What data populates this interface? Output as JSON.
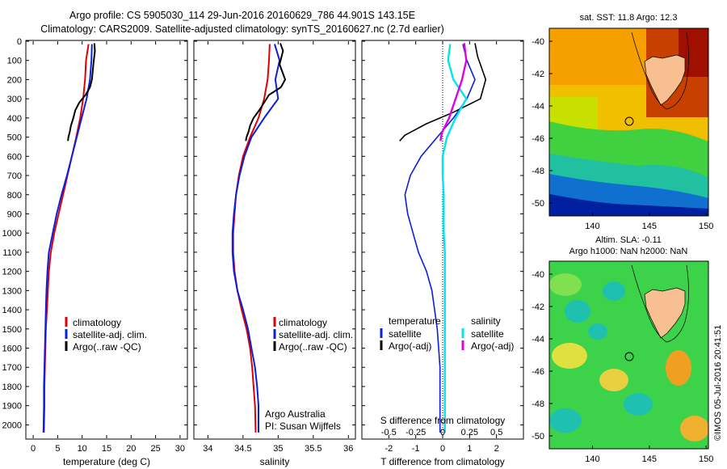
{
  "header": {
    "line1": "Argo profile: CS 5905030_114 29-Jun-2016 20160629_786 44.901S 143.15E",
    "line2": "Climatology: CARS2009. Satellite-adjusted climatology: synTS_20160627.nc (2.7d earlier)"
  },
  "colors": {
    "climatology": "#e00000",
    "satellite_adj": "#0a1fe0",
    "argo": "#000000",
    "sal_satellite": "#00e5ee",
    "sal_argo": "#e000e0"
  },
  "depth_axis": {
    "ticks": [
      0,
      100,
      200,
      300,
      400,
      500,
      600,
      700,
      800,
      900,
      1000,
      1100,
      1200,
      1300,
      1400,
      1500,
      1600,
      1700,
      1800,
      1900,
      2000
    ],
    "range": [
      0,
      2070
    ]
  },
  "temperature_panel": {
    "xlabel": "temperature (deg C)",
    "xticks": [
      0,
      5,
      10,
      15,
      20,
      25,
      30
    ],
    "xrange": [
      -1.5,
      31.5
    ],
    "legend": [
      "climatology",
      "satellite-adj. clim.",
      "Argo(..raw -QC)"
    ]
  },
  "salinity_panel": {
    "xlabel": "salinity",
    "xticks": [
      "34",
      "34.5",
      "35",
      "35.5",
      "36"
    ],
    "xrange": [
      33.8,
      36.1
    ],
    "legend": [
      "climatology",
      "satellite-adj. clim.",
      "Argo(..raw -QC)"
    ],
    "credit1": "Argo Australia",
    "credit2": "PI: Susan Wijffels"
  },
  "difference_panel": {
    "title_top": "S difference from climatology",
    "top_ticks": [
      "-0.5",
      "-0.25",
      "0",
      "0.25",
      "0.5"
    ],
    "top_tick_values": [
      -0.5,
      -0.25,
      0,
      0.25,
      0.5
    ],
    "xlabel": "T difference from climatology",
    "xticks": [
      "-2",
      "-1",
      "0",
      "1",
      "2"
    ],
    "xrange": [
      -3,
      3
    ],
    "legend_left_title": "temperature",
    "legend_right_title": "salinity",
    "legend_left": [
      "satellite",
      "Argo(-adj)"
    ],
    "legend_right": [
      "satellite",
      "Argo(-adj)"
    ]
  },
  "map_sst": {
    "title": "sat. SST: 11.8 Argo: 12.3",
    "yticks": [
      "-40",
      "-42",
      "-44",
      "-46",
      "-48",
      "-50"
    ],
    "xticks": [
      "140",
      "145",
      "150"
    ],
    "argo_position": {
      "lon": 143.15,
      "lat": -44.901
    }
  },
  "map_sla": {
    "title1": "Altim. SLA: -0.11",
    "title2": "Argo h1000: NaN h2000: NaN",
    "yticks": [
      "-40",
      "-42",
      "-44",
      "-46",
      "-48",
      "-50"
    ],
    "xticks": [
      "140",
      "145",
      "150"
    ],
    "argo_position": {
      "lon": 143.15,
      "lat": -44.901
    }
  },
  "side_stamp": "©IMOS 05-Jul-2016 20:41:51",
  "chart_data": [
    {
      "type": "line",
      "panel": "temperature",
      "xlabel": "temperature (deg C)",
      "ylabel": "",
      "xlim": [
        -1.5,
        31.5
      ],
      "ylim": [
        2070,
        0
      ],
      "series": [
        {
          "name": "climatology",
          "x": [
            11.3,
            10.8,
            10.6,
            10.2,
            9.6,
            8.8,
            7.9,
            7.0,
            6.1,
            5.2,
            4.3,
            3.6,
            3.2,
            3.0,
            2.8,
            2.6,
            2.5,
            2.4,
            2.3,
            2.3,
            2.2
          ],
          "y": [
            15,
            100,
            200,
            300,
            400,
            500,
            600,
            700,
            800,
            900,
            1000,
            1100,
            1200,
            1300,
            1400,
            1500,
            1600,
            1700,
            1800,
            1900,
            2040
          ]
        },
        {
          "name": "satellite-adj. clim.",
          "x": [
            12.0,
            11.9,
            11.6,
            10.9,
            9.9,
            8.9,
            7.9,
            6.9,
            5.8,
            4.8,
            4.0,
            3.2,
            2.9,
            2.7,
            2.6,
            2.5,
            2.4,
            2.3,
            2.2,
            2.2,
            2.1
          ],
          "y": [
            15,
            100,
            200,
            300,
            400,
            500,
            600,
            700,
            800,
            900,
            1000,
            1100,
            1200,
            1300,
            1400,
            1500,
            1600,
            1700,
            1800,
            1900,
            2040
          ]
        },
        {
          "name": "Argo(..raw -QC)",
          "x": [
            12.5,
            12.6,
            12.3,
            12.0,
            11.6,
            10.7,
            9.4,
            8.6,
            8.2,
            7.7,
            7.5,
            7.2,
            7.1
          ],
          "y": [
            10,
            50,
            120,
            200,
            240,
            280,
            320,
            360,
            400,
            440,
            470,
            500,
            520
          ]
        }
      ]
    },
    {
      "type": "line",
      "panel": "salinity",
      "xlabel": "salinity",
      "ylabel": "",
      "xlim": [
        33.8,
        36.1
      ],
      "ylim": [
        2070,
        0
      ],
      "series": [
        {
          "name": "climatology",
          "x": [
            34.88,
            34.87,
            34.85,
            34.8,
            34.72,
            34.6,
            34.5,
            34.44,
            34.4,
            34.38,
            34.36,
            34.36,
            34.38,
            34.42,
            34.48,
            34.55,
            34.6,
            34.63,
            34.65,
            34.67,
            34.68
          ],
          "y": [
            15,
            100,
            200,
            300,
            400,
            500,
            600,
            700,
            800,
            900,
            1000,
            1100,
            1200,
            1300,
            1400,
            1500,
            1600,
            1700,
            1800,
            1900,
            2040
          ]
        },
        {
          "name": "satellite-adj. clim.",
          "x": [
            34.95,
            35.02,
            34.96,
            35.0,
            34.8,
            34.62,
            34.52,
            34.45,
            34.4,
            34.37,
            34.35,
            34.35,
            34.37,
            34.42,
            34.5,
            34.57,
            34.62,
            34.67,
            34.7,
            34.72,
            34.72
          ],
          "y": [
            15,
            100,
            200,
            300,
            400,
            500,
            600,
            700,
            800,
            900,
            1000,
            1100,
            1200,
            1300,
            1400,
            1500,
            1600,
            1700,
            1800,
            1900,
            2040
          ]
        },
        {
          "name": "Argo(..raw -QC)",
          "x": [
            35.03,
            35.07,
            35.02,
            35.1,
            35.04,
            34.87,
            34.8,
            34.73,
            34.65,
            34.6,
            34.58,
            34.55,
            34.54
          ],
          "y": [
            10,
            50,
            120,
            200,
            240,
            280,
            320,
            360,
            400,
            440,
            470,
            500,
            520
          ]
        }
      ]
    },
    {
      "type": "line",
      "panel": "difference",
      "xlabel": "T difference from climatology",
      "ylabel": "",
      "xlim": [
        -3,
        3
      ],
      "ylim": [
        2070,
        0
      ],
      "series": [
        {
          "name": "satellite",
          "x": [
            0.75,
            0.9,
            1.2,
            0.9,
            0.4,
            -0.2,
            -0.8,
            -1.2,
            -1.4,
            -1.3,
            -1.1,
            -0.9,
            -0.6,
            -0.4,
            -0.3,
            -0.2,
            -0.15,
            -0.1,
            -0.1,
            -0.1,
            -0.1
          ],
          "y": [
            15,
            100,
            200,
            300,
            400,
            500,
            600,
            700,
            800,
            900,
            1000,
            1100,
            1200,
            1300,
            1400,
            1500,
            1600,
            1700,
            1800,
            1900,
            2040
          ]
        },
        {
          "name": "Argo(-adj)",
          "x": [
            1.2,
            1.3,
            1.6,
            1.4,
            0.4,
            -0.6,
            -1.4,
            -1.6
          ],
          "y": [
            10,
            80,
            200,
            300,
            370,
            430,
            490,
            520
          ]
        }
      ]
    },
    {
      "type": "line",
      "panel": "difference",
      "xlabel": "S difference from climatology",
      "ylabel": "",
      "xlim": [
        -0.75,
        0.75
      ],
      "ylim": [
        2070,
        0
      ],
      "series": [
        {
          "name": "satellite",
          "x": [
            0.07,
            0.05,
            0.1,
            0.22,
            0.12,
            0.04,
            0.0,
            0.0,
            0.01,
            0.01,
            0.01,
            0.02,
            0.02,
            0.02,
            0.02,
            0.02,
            0.02,
            0.02,
            0.02,
            0.02,
            0.02
          ],
          "y": [
            15,
            100,
            200,
            300,
            400,
            500,
            600,
            700,
            800,
            900,
            1000,
            1100,
            1200,
            1300,
            1400,
            1500,
            1600,
            1700,
            1800,
            1900,
            2040
          ]
        },
        {
          "name": "Argo(-adj)",
          "x": [
            0.2,
            0.22,
            0.18,
            0.12,
            0.06,
            -0.01,
            -0.02
          ],
          "y": [
            10,
            100,
            200,
            300,
            400,
            480,
            520
          ]
        }
      ]
    }
  ]
}
